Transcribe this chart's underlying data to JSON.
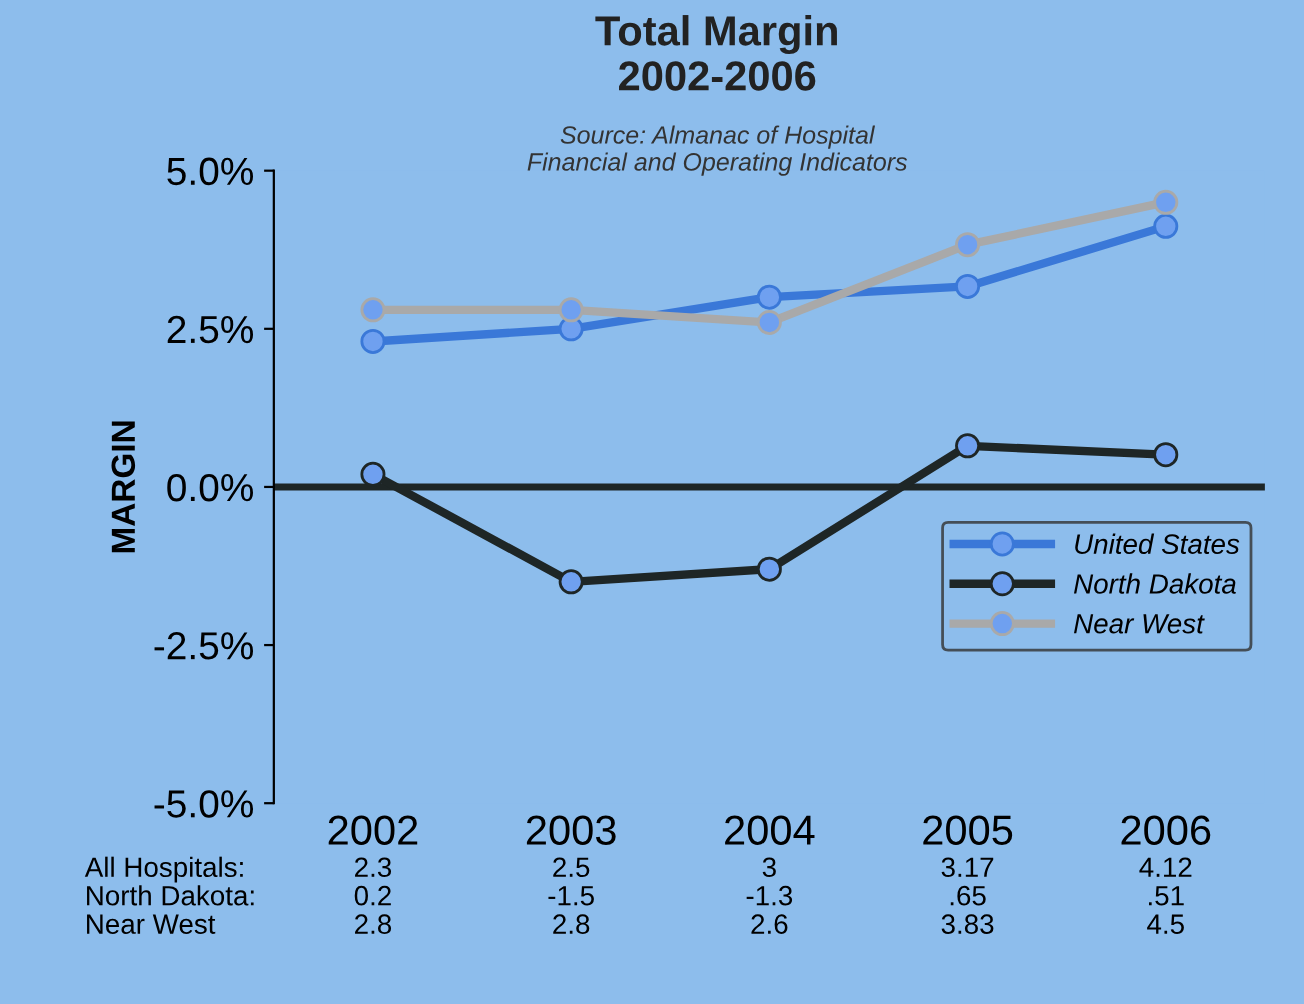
{
  "chart_data": {
    "type": "line",
    "title": "Total Margin\n2002-2006",
    "ylabel": "MARGIN",
    "annotations": [
      "Source: Almanac of Hospital\nFinancial and Operating Indicators",
      "All Hospitals:",
      "North Dakota:",
      "Near West"
    ],
    "categories": [
      "2002",
      "2003",
      "2004",
      "2005",
      "2006"
    ],
    "series": [
      {
        "name": "United States",
        "color": "#3a78d8",
        "values": [
          2.3,
          2.5,
          3,
          3.17,
          4.12
        ],
        "value_labels": [
          "2.3",
          "2.5",
          "3",
          "3.17",
          "4.12"
        ]
      },
      {
        "name": "North Dakota",
        "color": "#1e2626",
        "values": [
          0.2,
          -1.5,
          -1.3,
          0.65,
          0.51
        ],
        "value_labels": [
          "0.2",
          "-1.5",
          "-1.3",
          ".65",
          ".51"
        ]
      },
      {
        "name": "Near West",
        "color": "#a9a9a9",
        "values": [
          2.8,
          2.8,
          2.6,
          3.83,
          4.5
        ],
        "value_labels": [
          "2.8",
          "2.8",
          "2.6",
          "3.83",
          "4.5"
        ]
      }
    ],
    "ylim": [
      -5,
      5
    ],
    "yticks": [
      {
        "value": 5,
        "label": "5.0%"
      },
      {
        "value": 2.5,
        "label": "2.5%"
      },
      {
        "value": 0,
        "label": "0.0%"
      },
      {
        "value": -2.5,
        "label": "-2.5%"
      },
      {
        "value": -5,
        "label": "-5.0%"
      }
    ],
    "ref_lines": [
      {
        "axis": "y",
        "value": 0,
        "color": "#1e2626"
      }
    ],
    "legend": "bottom right",
    "marker": "circle",
    "line_style": "solid"
  }
}
